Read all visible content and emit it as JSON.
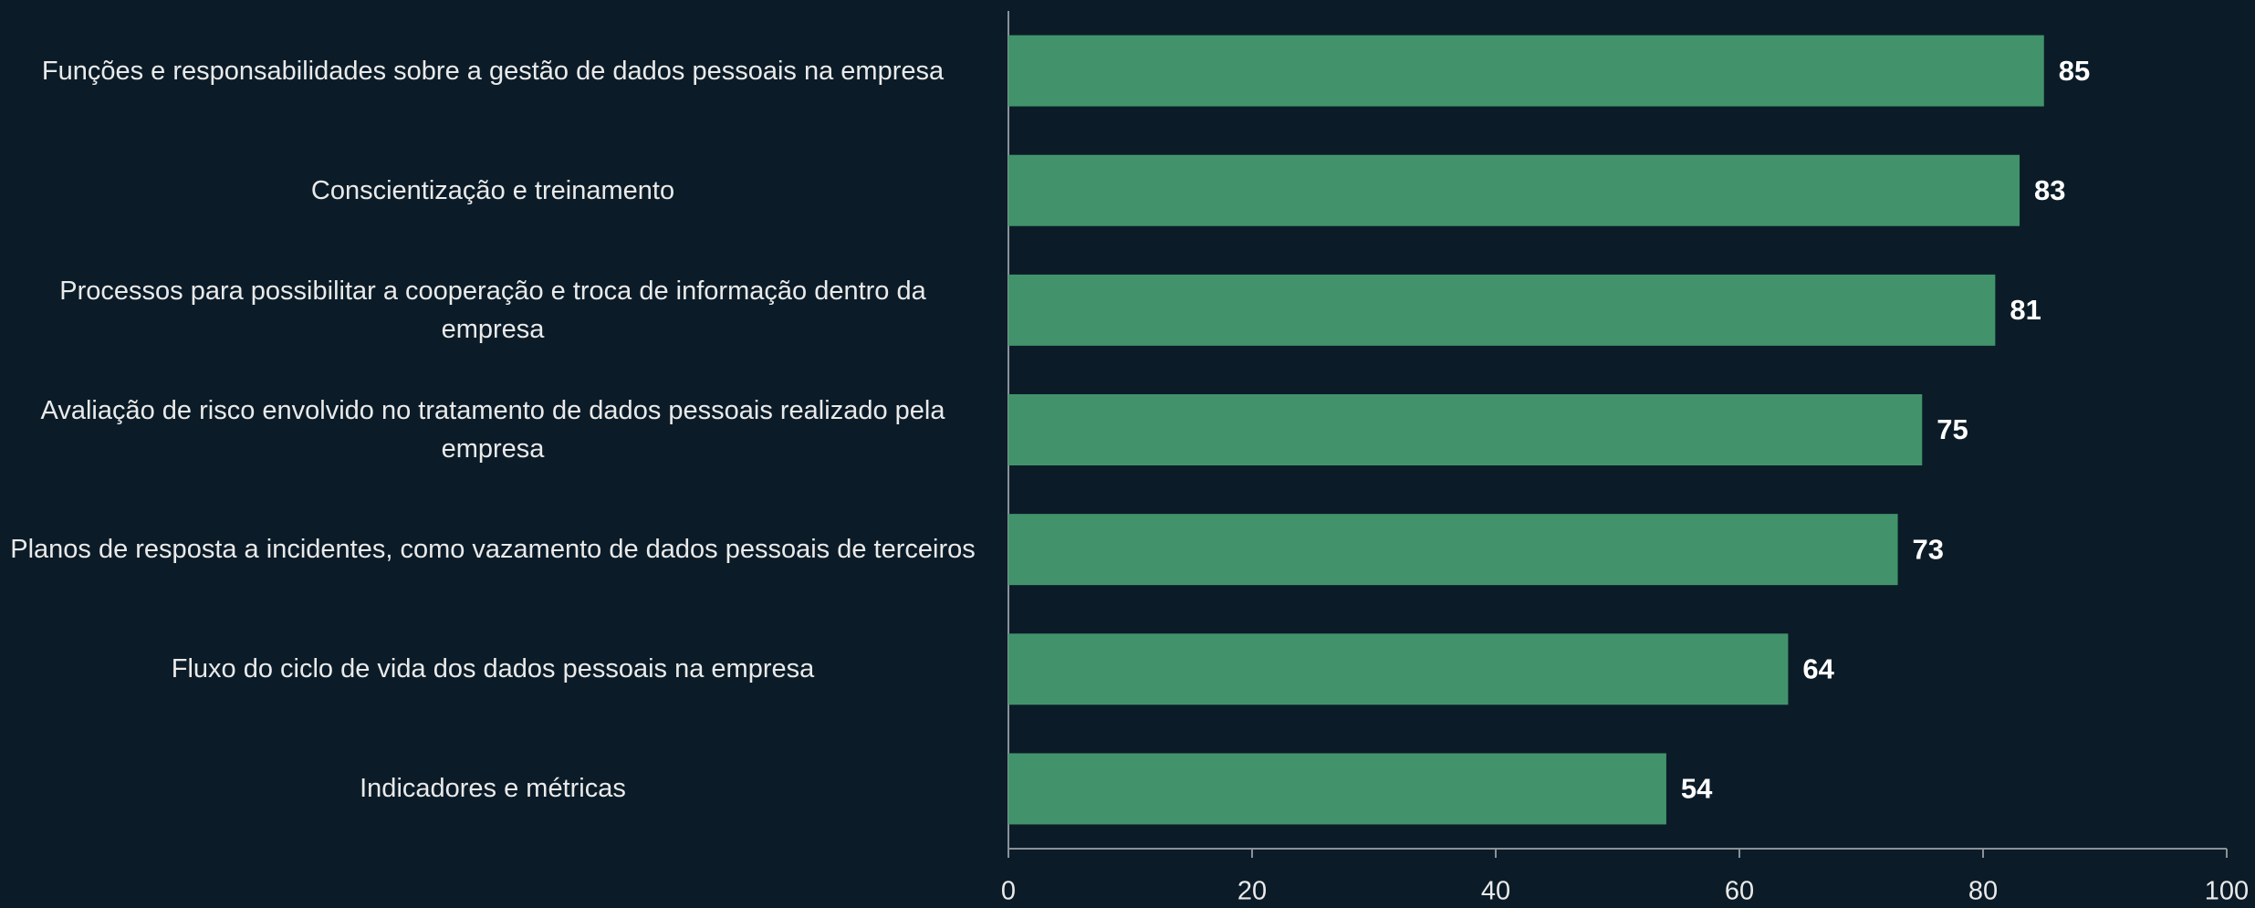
{
  "chart_data": {
    "type": "barh",
    "categories": [
      "Funções e responsabilidades sobre a gestão de dados pessoais na empresa",
      "Conscientização e treinamento ",
      "Processos para possibilitar a cooperação e troca de informação dentro da empresa",
      "Avaliação de risco envolvido no tratamento de dados pessoais realizado pela empresa",
      "Planos de resposta a incidentes, como vazamento de dados pessoais de terceiros",
      "Fluxo do ciclo de vida dos dados pessoais na empresa",
      "Indicadores e métricas"
    ],
    "values": [
      85,
      83,
      81,
      75,
      73,
      64,
      54
    ],
    "color": "#42936b",
    "xlim": [
      0,
      100
    ],
    "xticks": [
      0,
      20,
      40,
      60,
      80,
      100
    ],
    "grid": false
  }
}
